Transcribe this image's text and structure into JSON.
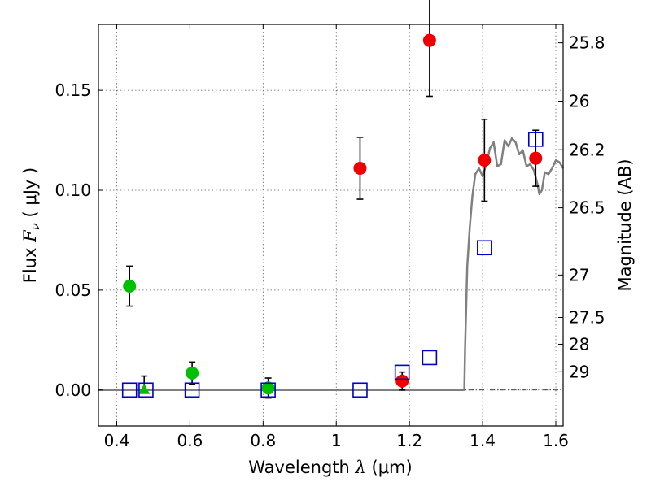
{
  "chart_data": {
    "type": "scatter",
    "title": "",
    "xlabel": {
      "prefix": "Wavelength  ",
      "sym": "λ",
      "unit": " (μm)"
    },
    "ylabel": {
      "prefix": "Flux  ",
      "sym": "F",
      "sub": "ν",
      "unit": "  ( μJy )"
    },
    "y2label": "Magnitude (AB)",
    "xlim": [
      0.35,
      1.62
    ],
    "ylim": [
      -0.018,
      0.183
    ],
    "x_ticks": [
      {
        "v": 0.4,
        "label": "0.4"
      },
      {
        "v": 0.6,
        "label": "0.6"
      },
      {
        "v": 0.8,
        "label": "0.8"
      },
      {
        "v": 1.0,
        "label": "1"
      },
      {
        "v": 1.2,
        "label": "1.2"
      },
      {
        "v": 1.4,
        "label": "1.4"
      },
      {
        "v": 1.6,
        "label": "1.6"
      }
    ],
    "y_ticks": [
      {
        "v": 0.0,
        "label": "0.00"
      },
      {
        "v": 0.05,
        "label": "0.05"
      },
      {
        "v": 0.1,
        "label": "0.10"
      },
      {
        "v": 0.15,
        "label": "0.15"
      }
    ],
    "y2_ticks": [
      {
        "mag": 25.8,
        "label": "25.8"
      },
      {
        "mag": 26.0,
        "label": "26"
      },
      {
        "mag": 26.2,
        "label": "26.2"
      },
      {
        "mag": 26.5,
        "label": "26.5"
      },
      {
        "mag": 27.0,
        "label": "27"
      },
      {
        "mag": 27.5,
        "label": "27.5"
      },
      {
        "mag": 28.0,
        "label": "28"
      },
      {
        "mag": 29.0,
        "label": "29"
      }
    ],
    "grid": true,
    "series": [
      {
        "marker": "circle",
        "color": "#00c000",
        "points": [
          {
            "x": 0.435,
            "y": 0.052,
            "err": 0.01
          },
          {
            "x": 0.606,
            "y": 0.0085,
            "err": 0.0055
          },
          {
            "x": 0.814,
            "y": 0.001,
            "err": 0.005
          }
        ]
      },
      {
        "marker": "triangle",
        "color": "#00c000",
        "points": [
          {
            "x": 0.475,
            "y": 0.0,
            "err_up": 0.007
          }
        ]
      },
      {
        "marker": "circle",
        "color": "#ee0000",
        "points": [
          {
            "x": 1.065,
            "y": 0.111,
            "err": 0.0155
          },
          {
            "x": 1.18,
            "y": 0.0045,
            "err": 0.0045
          },
          {
            "x": 1.255,
            "y": 0.175,
            "err": 0.028
          },
          {
            "x": 1.405,
            "y": 0.115,
            "err": 0.0205
          },
          {
            "x": 1.545,
            "y": 0.116,
            "err": 0.014
          }
        ]
      },
      {
        "marker": "square-open",
        "color": "#0000cc",
        "points": [
          {
            "x": 0.435,
            "y": 0.0
          },
          {
            "x": 0.48,
            "y": 0.0
          },
          {
            "x": 0.606,
            "y": 0.0
          },
          {
            "x": 0.814,
            "y": 0.0
          },
          {
            "x": 1.065,
            "y": 0.0
          },
          {
            "x": 1.18,
            "y": 0.0089
          },
          {
            "x": 1.255,
            "y": 0.0162
          },
          {
            "x": 1.405,
            "y": 0.0712
          },
          {
            "x": 1.545,
            "y": 0.1255
          }
        ]
      },
      {
        "marker": "line",
        "color": "#808080",
        "points": [
          {
            "x": 0.35,
            "y": 0.0
          },
          {
            "x": 1.35,
            "y": 0.0
          },
          {
            "x": 1.352,
            "y": 0.02
          },
          {
            "x": 1.358,
            "y": 0.062
          },
          {
            "x": 1.365,
            "y": 0.082
          },
          {
            "x": 1.372,
            "y": 0.097
          },
          {
            "x": 1.38,
            "y": 0.108
          },
          {
            "x": 1.39,
            "y": 0.111
          },
          {
            "x": 1.4,
            "y": 0.107
          },
          {
            "x": 1.41,
            "y": 0.113
          },
          {
            "x": 1.42,
            "y": 0.121
          },
          {
            "x": 1.43,
            "y": 0.124
          },
          {
            "x": 1.44,
            "y": 0.112
          },
          {
            "x": 1.45,
            "y": 0.113
          },
          {
            "x": 1.46,
            "y": 0.125
          },
          {
            "x": 1.47,
            "y": 0.122
          },
          {
            "x": 1.48,
            "y": 0.126
          },
          {
            "x": 1.49,
            "y": 0.124
          },
          {
            "x": 1.5,
            "y": 0.118
          },
          {
            "x": 1.51,
            "y": 0.12
          },
          {
            "x": 1.52,
            "y": 0.112
          },
          {
            "x": 1.53,
            "y": 0.113
          },
          {
            "x": 1.54,
            "y": 0.11
          },
          {
            "x": 1.55,
            "y": 0.103
          },
          {
            "x": 1.555,
            "y": 0.098
          },
          {
            "x": 1.562,
            "y": 0.1
          },
          {
            "x": 1.57,
            "y": 0.109
          },
          {
            "x": 1.58,
            "y": 0.108
          },
          {
            "x": 1.59,
            "y": 0.111
          },
          {
            "x": 1.6,
            "y": 0.115
          },
          {
            "x": 1.61,
            "y": 0.114
          },
          {
            "x": 1.62,
            "y": 0.111
          }
        ]
      }
    ]
  }
}
